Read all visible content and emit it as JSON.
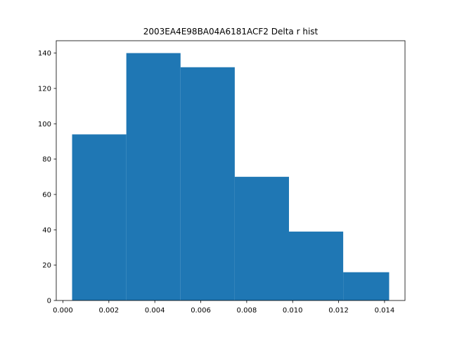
{
  "chart_data": {
    "type": "bar",
    "title": "2003EA4E98BA04A6181ACF2 Delta r hist",
    "xlabel": "",
    "ylabel": "",
    "bin_edges": [
      0.0004,
      0.00276,
      0.00512,
      0.00748,
      0.00984,
      0.0122,
      0.0142
    ],
    "values": [
      94,
      140,
      132,
      70,
      39,
      16
    ],
    "xlim": [
      -0.00029,
      0.01489
    ],
    "ylim": [
      0,
      147
    ],
    "xticks": [
      0.0,
      0.002,
      0.004,
      0.006,
      0.008,
      0.01,
      0.012,
      0.014
    ],
    "xtick_labels": [
      "0.000",
      "0.002",
      "0.004",
      "0.006",
      "0.008",
      "0.010",
      "0.012",
      "0.014"
    ],
    "yticks": [
      0,
      20,
      40,
      60,
      80,
      100,
      120,
      140
    ],
    "ytick_labels": [
      "0",
      "20",
      "40",
      "60",
      "80",
      "100",
      "120",
      "140"
    ],
    "bar_color": "#1f77b4",
    "grid": false,
    "legend": "none"
  }
}
